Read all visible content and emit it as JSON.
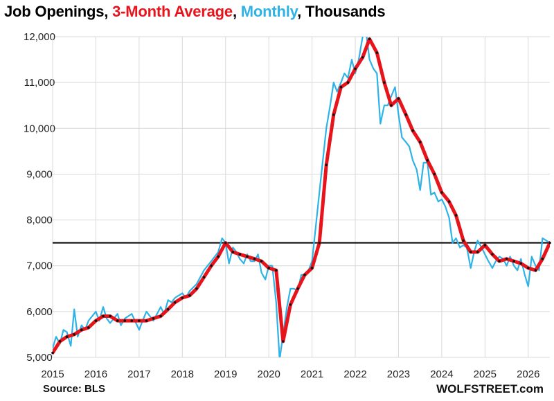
{
  "title": {
    "part1": "Job Openings, ",
    "part2": "3-Month Average",
    "part3": ", ",
    "part4": "Monthly",
    "part5": ", Thousands"
  },
  "footer": {
    "source": "Source: BLS",
    "brand": "WOLFSTREET.com"
  },
  "colors": {
    "avg": "#e8141b",
    "monthly": "#2fb2e6",
    "reference_line": "#000000",
    "dots": "#111111"
  },
  "chart_data": {
    "type": "line",
    "title": "Job Openings, 3-Month Average, Monthly, Thousands",
    "xlabel": "",
    "ylabel": "",
    "x_ticks": [
      "2015",
      "2016",
      "2017",
      "2018",
      "2019",
      "2020",
      "2021",
      "2022",
      "2023",
      "2024",
      "2025",
      "2026"
    ],
    "y_ticks": [
      "5,000",
      "6,000",
      "7,000",
      "8,000",
      "9,000",
      "10,000",
      "11,000",
      "12,000"
    ],
    "xlim": [
      2015.0,
      2026.5
    ],
    "ylim": [
      5000,
      12000
    ],
    "grid": true,
    "reference_line": 7500,
    "series": [
      {
        "name": "3-Month Average",
        "points": [
          [
            2015.0,
            5100
          ],
          [
            2015.17,
            5350
          ],
          [
            2015.33,
            5450
          ],
          [
            2015.5,
            5500
          ],
          [
            2015.67,
            5600
          ],
          [
            2015.83,
            5650
          ],
          [
            2016.0,
            5800
          ],
          [
            2016.17,
            5900
          ],
          [
            2016.33,
            5900
          ],
          [
            2016.5,
            5800
          ],
          [
            2016.67,
            5800
          ],
          [
            2016.83,
            5800
          ],
          [
            2017.0,
            5800
          ],
          [
            2017.17,
            5800
          ],
          [
            2017.33,
            5850
          ],
          [
            2017.5,
            5900
          ],
          [
            2017.67,
            6050
          ],
          [
            2017.83,
            6200
          ],
          [
            2018.0,
            6300
          ],
          [
            2018.17,
            6350
          ],
          [
            2018.33,
            6500
          ],
          [
            2018.5,
            6750
          ],
          [
            2018.67,
            7000
          ],
          [
            2018.83,
            7200
          ],
          [
            2019.0,
            7500
          ],
          [
            2019.17,
            7300
          ],
          [
            2019.33,
            7250
          ],
          [
            2019.5,
            7200
          ],
          [
            2019.67,
            7150
          ],
          [
            2019.83,
            7100
          ],
          [
            2020.0,
            6950
          ],
          [
            2020.17,
            6900
          ],
          [
            2020.33,
            5350
          ],
          [
            2020.5,
            6150
          ],
          [
            2020.67,
            6500
          ],
          [
            2020.83,
            6800
          ],
          [
            2021.0,
            6950
          ],
          [
            2021.17,
            7500
          ],
          [
            2021.33,
            9200
          ],
          [
            2021.5,
            10300
          ],
          [
            2021.67,
            10900
          ],
          [
            2021.83,
            11000
          ],
          [
            2022.0,
            11300
          ],
          [
            2022.17,
            11550
          ],
          [
            2022.33,
            11950
          ],
          [
            2022.5,
            11650
          ],
          [
            2022.67,
            11000
          ],
          [
            2022.83,
            10500
          ],
          [
            2023.0,
            10650
          ],
          [
            2023.17,
            10300
          ],
          [
            2023.33,
            9950
          ],
          [
            2023.5,
            9700
          ],
          [
            2023.67,
            9300
          ],
          [
            2023.83,
            9000
          ],
          [
            2024.0,
            8600
          ],
          [
            2024.17,
            8400
          ],
          [
            2024.33,
            8100
          ],
          [
            2024.5,
            7550
          ],
          [
            2024.67,
            7300
          ],
          [
            2024.83,
            7300
          ],
          [
            2025.0,
            7450
          ],
          [
            2025.17,
            7250
          ],
          [
            2025.33,
            7100
          ],
          [
            2025.5,
            7150
          ],
          [
            2025.67,
            7100
          ],
          [
            2025.83,
            7050
          ],
          [
            2026.0,
            6950
          ],
          [
            2026.17,
            6900
          ],
          [
            2026.33,
            7150
          ],
          [
            2026.5,
            7500
          ]
        ]
      },
      {
        "name": "Monthly",
        "points": [
          [
            2015.0,
            5200
          ],
          [
            2015.08,
            5450
          ],
          [
            2015.17,
            5300
          ],
          [
            2015.25,
            5600
          ],
          [
            2015.33,
            5550
          ],
          [
            2015.42,
            5250
          ],
          [
            2015.5,
            6050
          ],
          [
            2015.58,
            5450
          ],
          [
            2015.67,
            5700
          ],
          [
            2015.75,
            5600
          ],
          [
            2015.83,
            5800
          ],
          [
            2016.0,
            6000
          ],
          [
            2016.08,
            5800
          ],
          [
            2016.17,
            6100
          ],
          [
            2016.25,
            5850
          ],
          [
            2016.33,
            5750
          ],
          [
            2016.5,
            5950
          ],
          [
            2016.58,
            5700
          ],
          [
            2016.67,
            5850
          ],
          [
            2016.83,
            5950
          ],
          [
            2017.0,
            5600
          ],
          [
            2017.08,
            5800
          ],
          [
            2017.17,
            6000
          ],
          [
            2017.25,
            5900
          ],
          [
            2017.33,
            5800
          ],
          [
            2017.5,
            6100
          ],
          [
            2017.58,
            5950
          ],
          [
            2017.67,
            6250
          ],
          [
            2017.75,
            6200
          ],
          [
            2017.83,
            6300
          ],
          [
            2018.0,
            6400
          ],
          [
            2018.08,
            6300
          ],
          [
            2018.17,
            6450
          ],
          [
            2018.33,
            6600
          ],
          [
            2018.5,
            6900
          ],
          [
            2018.67,
            7100
          ],
          [
            2018.75,
            7200
          ],
          [
            2018.83,
            7300
          ],
          [
            2018.92,
            7600
          ],
          [
            2019.0,
            7500
          ],
          [
            2019.08,
            7050
          ],
          [
            2019.17,
            7400
          ],
          [
            2019.25,
            7300
          ],
          [
            2019.33,
            7150
          ],
          [
            2019.42,
            7050
          ],
          [
            2019.5,
            7250
          ],
          [
            2019.58,
            7100
          ],
          [
            2019.67,
            7100
          ],
          [
            2019.75,
            7250
          ],
          [
            2019.83,
            6850
          ],
          [
            2019.92,
            6700
          ],
          [
            2020.0,
            7000
          ],
          [
            2020.08,
            7000
          ],
          [
            2020.17,
            6200
          ],
          [
            2020.25,
            4950
          ],
          [
            2020.33,
            5500
          ],
          [
            2020.42,
            6100
          ],
          [
            2020.5,
            6500
          ],
          [
            2020.58,
            6500
          ],
          [
            2020.67,
            6450
          ],
          [
            2020.75,
            6800
          ],
          [
            2020.83,
            6800
          ],
          [
            2020.92,
            6900
          ],
          [
            2021.0,
            7100
          ],
          [
            2021.08,
            7800
          ],
          [
            2021.17,
            8600
          ],
          [
            2021.25,
            9300
          ],
          [
            2021.33,
            10000
          ],
          [
            2021.42,
            10500
          ],
          [
            2021.5,
            11000
          ],
          [
            2021.58,
            10800
          ],
          [
            2021.67,
            11000
          ],
          [
            2021.75,
            11200
          ],
          [
            2021.83,
            11100
          ],
          [
            2021.92,
            11500
          ],
          [
            2022.0,
            11200
          ],
          [
            2022.08,
            11500
          ],
          [
            2022.17,
            12000
          ],
          [
            2022.25,
            12100
          ],
          [
            2022.33,
            11500
          ],
          [
            2022.42,
            11300
          ],
          [
            2022.5,
            11200
          ],
          [
            2022.58,
            10100
          ],
          [
            2022.67,
            10500
          ],
          [
            2022.75,
            10500
          ],
          [
            2022.83,
            10700
          ],
          [
            2022.92,
            10900
          ],
          [
            2023.0,
            10300
          ],
          [
            2023.08,
            9800
          ],
          [
            2023.17,
            9700
          ],
          [
            2023.25,
            9600
          ],
          [
            2023.33,
            9300
          ],
          [
            2023.42,
            9100
          ],
          [
            2023.5,
            8650
          ],
          [
            2023.58,
            9250
          ],
          [
            2023.67,
            9250
          ],
          [
            2023.75,
            8550
          ],
          [
            2023.83,
            8600
          ],
          [
            2023.92,
            8400
          ],
          [
            2024.0,
            8450
          ],
          [
            2024.08,
            8300
          ],
          [
            2024.17,
            8050
          ],
          [
            2024.25,
            7500
          ],
          [
            2024.33,
            7600
          ],
          [
            2024.42,
            7400
          ],
          [
            2024.5,
            7450
          ],
          [
            2024.58,
            7400
          ],
          [
            2024.67,
            6950
          ],
          [
            2024.75,
            7300
          ],
          [
            2024.83,
            7550
          ],
          [
            2024.92,
            7400
          ],
          [
            2025.0,
            7250
          ],
          [
            2025.08,
            7100
          ],
          [
            2025.17,
            6950
          ],
          [
            2025.25,
            7100
          ],
          [
            2025.33,
            7200
          ],
          [
            2025.42,
            7150
          ],
          [
            2025.5,
            7000
          ],
          [
            2025.58,
            7200
          ],
          [
            2025.67,
            7000
          ],
          [
            2025.75,
            6900
          ],
          [
            2025.83,
            7150
          ],
          [
            2025.92,
            6800
          ],
          [
            2026.0,
            6550
          ],
          [
            2026.08,
            7200
          ],
          [
            2026.17,
            7000
          ],
          [
            2026.25,
            6900
          ],
          [
            2026.33,
            7600
          ],
          [
            2026.42,
            7550
          ],
          [
            2026.5,
            7500
          ]
        ]
      }
    ]
  }
}
